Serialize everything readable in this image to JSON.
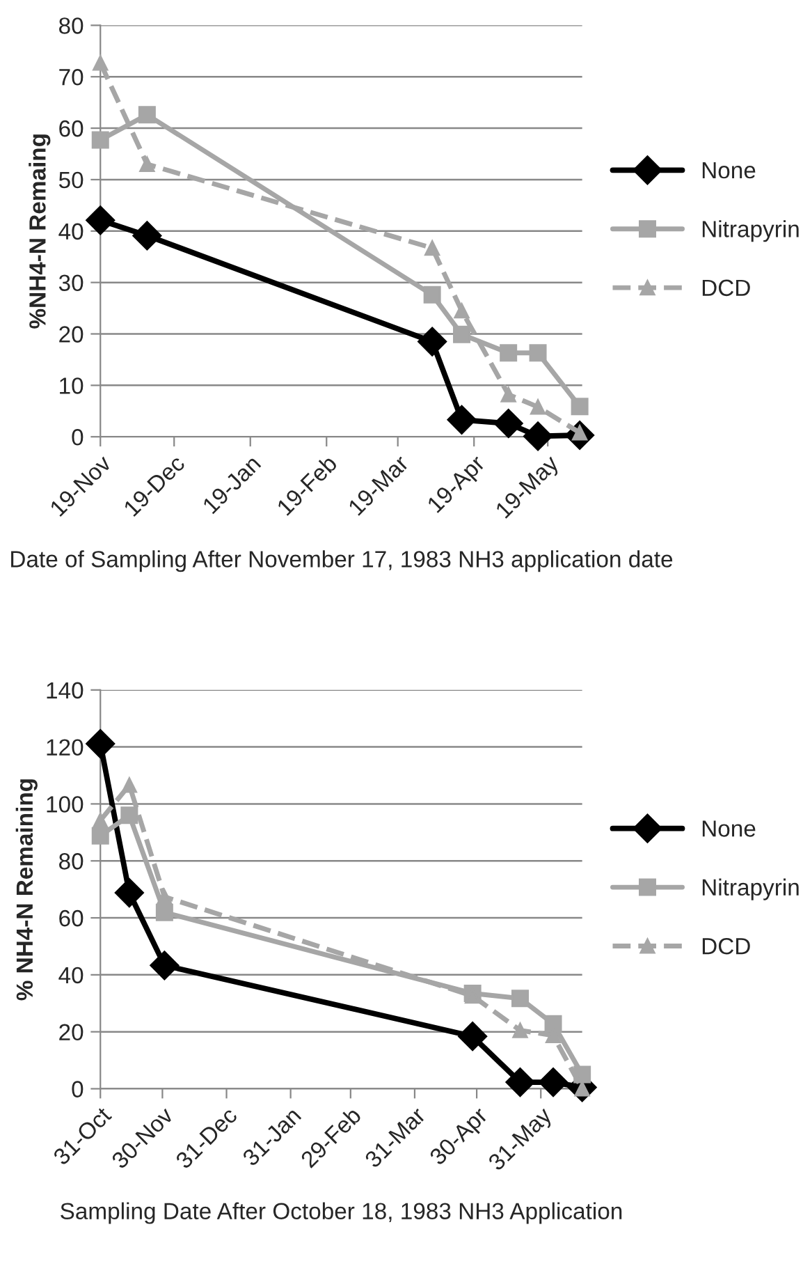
{
  "chart_data": [
    {
      "type": "line",
      "xlabel": "Date of Sampling After November 17, 1983 NH3 application date",
      "ylabel": "%NH4-N Remaing",
      "x": [
        "1983-11-19",
        "1983-12-08",
        "1984-04-02",
        "1984-04-14",
        "1984-05-03",
        "1984-05-15",
        "1984-06-01"
      ],
      "series": [
        {
          "name": "None",
          "color": "#000000",
          "marker": "diamond",
          "line_style": "solid",
          "values": [
            42.1,
            39.1,
            18.5,
            3.3,
            2.6,
            0.1,
            0.3
          ]
        },
        {
          "name": "Nitrapyrin",
          "color": "#a6a6a6",
          "marker": "square",
          "line_style": "solid",
          "values": [
            57.7,
            62.6,
            27.6,
            19.9,
            16.3,
            16.3,
            5.9
          ]
        },
        {
          "name": "DCD",
          "color": "#a6a6a6",
          "marker": "triangle",
          "line_style": "dashed",
          "values": [
            72.7,
            53.0,
            36.7,
            24.5,
            8.2,
            5.8,
            0.8
          ]
        }
      ],
      "xlim": [
        "1983-11-19",
        "1984-06-02"
      ],
      "xticks": [
        {
          "value": "1983-11-19",
          "label": "19-Nov"
        },
        {
          "value": "1983-12-19",
          "label": "19-Dec"
        },
        {
          "value": "1984-01-19",
          "label": "19-Jan"
        },
        {
          "value": "1984-02-19",
          "label": "19-Feb"
        },
        {
          "value": "1984-03-19",
          "label": "19-Mar"
        },
        {
          "value": "1984-04-19",
          "label": "19-Apr"
        },
        {
          "value": "1984-05-19",
          "label": "19-May"
        }
      ],
      "ylim": [
        0,
        80
      ],
      "yticks": [
        0,
        10,
        20,
        30,
        40,
        50,
        60,
        70,
        80
      ],
      "grid": "y",
      "legend": "right"
    },
    {
      "type": "line",
      "xlabel": "Sampling Date After October 18, 1983 NH3 Application",
      "ylabel": "% NH4-N Remaining",
      "x": [
        "1983-10-31",
        "1983-11-14",
        "1983-12-01",
        "1984-04-28",
        "1984-05-21",
        "1984-06-06",
        "1984-06-20"
      ],
      "series": [
        {
          "name": "None",
          "color": "#000000",
          "marker": "diamond",
          "line_style": "solid",
          "values": [
            121.1,
            68.8,
            43.3,
            18.4,
            2.3,
            2.3,
            0.5
          ]
        },
        {
          "name": "Nitrapyrin",
          "color": "#a6a6a6",
          "marker": "square",
          "line_style": "solid",
          "values": [
            88.8,
            96.0,
            61.9,
            33.5,
            31.7,
            22.8,
            5.0
          ]
        },
        {
          "name": "DCD",
          "color": "#a6a6a6",
          "marker": "triangle",
          "line_style": "dashed",
          "values": [
            94.2,
            106.6,
            67.4,
            32.6,
            20.5,
            18.7,
            0.0
          ]
        }
      ],
      "xlim": [
        "1983-10-31",
        "1984-06-20"
      ],
      "xticks": [
        {
          "value": "1983-10-31",
          "label": "31-Oct"
        },
        {
          "value": "1983-11-30",
          "label": "30-Nov"
        },
        {
          "value": "1983-12-31",
          "label": "31-Dec"
        },
        {
          "value": "1984-01-31",
          "label": "31-Jan"
        },
        {
          "value": "1984-02-29",
          "label": "29-Feb"
        },
        {
          "value": "1984-03-31",
          "label": "31-Mar"
        },
        {
          "value": "1984-04-30",
          "label": "30-Apr"
        },
        {
          "value": "1984-05-31",
          "label": "31-May"
        }
      ],
      "ylim": [
        0,
        140
      ],
      "yticks": [
        0,
        20,
        40,
        60,
        80,
        100,
        120,
        140
      ],
      "grid": "y",
      "legend": "right"
    }
  ]
}
